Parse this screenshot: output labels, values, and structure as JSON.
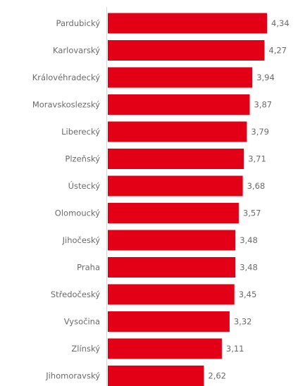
{
  "chart_data": {
    "type": "bar",
    "orientation": "horizontal",
    "categories": [
      "Pardubický",
      "Karlovarský",
      "Královéhradecký",
      "Moravskoslezský",
      "Liberecký",
      "Plzeňský",
      "Ústecký",
      "Olomoucký",
      "Jihočeský",
      "Praha",
      "Středočeský",
      "Vysočina",
      "Zlínský",
      "Jihomoravský"
    ],
    "values": [
      4.34,
      4.27,
      3.94,
      3.87,
      3.79,
      3.71,
      3.68,
      3.57,
      3.48,
      3.48,
      3.45,
      3.32,
      3.11,
      2.62
    ],
    "value_labels": [
      "4,34",
      "4,27",
      "3,94",
      "3,87",
      "3,79",
      "3,71",
      "3,68",
      "3,57",
      "3,48",
      "3,48",
      "3,45",
      "3,32",
      "3,11",
      "2,62"
    ],
    "xlim": [
      0,
      4.34
    ],
    "grid": false,
    "bar_color": "#e30016",
    "text_color": "#6b6b6b"
  }
}
